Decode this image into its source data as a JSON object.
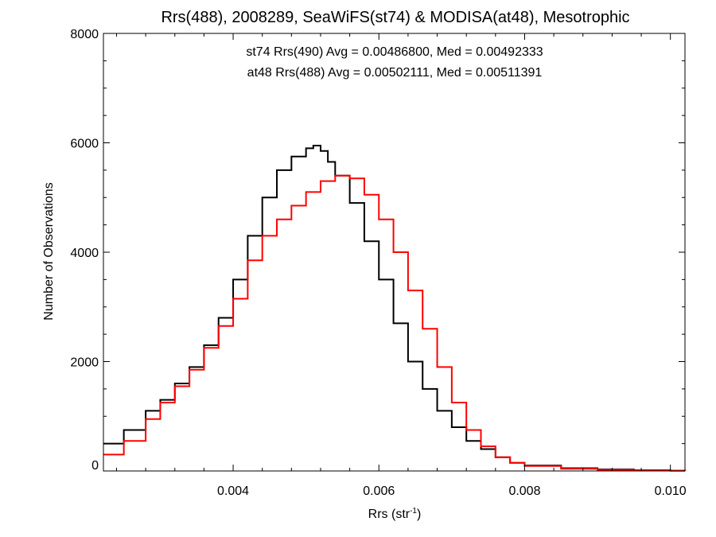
{
  "chart_data": {
    "type": "line",
    "step": true,
    "title": "Rrs(488), 2008289, SeaWiFS(st74) & MODISA(at48), Mesotrophic",
    "xlabel_main": "Rrs (str",
    "xlabel_sup": "-1",
    "xlabel_close": ")",
    "ylabel": "Number of Observations",
    "xlim": [
      0.00222,
      0.0102
    ],
    "ylim": [
      0,
      8000
    ],
    "x_ticks": [
      0.004,
      0.006,
      0.008,
      0.01
    ],
    "x_tick_labels": [
      "0.004",
      "0.006",
      "0.008",
      "0.010"
    ],
    "y_ticks": [
      0,
      2000,
      4000,
      6000,
      8000
    ],
    "y_tick_labels": [
      "0",
      "2000",
      "4000",
      "6000",
      "8000"
    ],
    "grid": false,
    "colors": {
      "st74": "#000000",
      "at48": "#ff0000"
    },
    "series": [
      {
        "name": "st74",
        "color": "#000000",
        "annotation": "st74 Rrs(490) Avg = 0.00486800, Med = 0.00492333",
        "x": [
          0.00222,
          0.0025,
          0.0028,
          0.003,
          0.0032,
          0.0034,
          0.0036,
          0.0038,
          0.004,
          0.0042,
          0.0044,
          0.0046,
          0.0048,
          0.005,
          0.0051,
          0.0052,
          0.0053,
          0.0054,
          0.0056,
          0.0058,
          0.006,
          0.0062,
          0.0064,
          0.0066,
          0.0068,
          0.007,
          0.0072,
          0.0074,
          0.0076,
          0.0078,
          0.008,
          0.0085,
          0.009,
          0.0095,
          0.01,
          0.0102
        ],
        "y": [
          500,
          750,
          1100,
          1300,
          1600,
          1900,
          2300,
          2800,
          3500,
          4300,
          5000,
          5500,
          5750,
          5900,
          5950,
          5850,
          5650,
          5400,
          4900,
          4200,
          3500,
          2700,
          2000,
          1500,
          1100,
          800,
          550,
          400,
          250,
          150,
          100,
          50,
          30,
          15,
          5,
          0
        ]
      },
      {
        "name": "at48",
        "color": "#ff0000",
        "annotation": "at48 Rrs(488) Avg = 0.00502111, Med = 0.00511391",
        "x": [
          0.00222,
          0.0025,
          0.0028,
          0.003,
          0.0032,
          0.0034,
          0.0036,
          0.0038,
          0.004,
          0.0042,
          0.0044,
          0.0046,
          0.0048,
          0.005,
          0.0052,
          0.0054,
          0.0056,
          0.0058,
          0.006,
          0.0062,
          0.0064,
          0.0066,
          0.0068,
          0.007,
          0.0072,
          0.0074,
          0.0076,
          0.0078,
          0.008,
          0.0085,
          0.009,
          0.0095,
          0.01,
          0.0102
        ],
        "y": [
          300,
          550,
          950,
          1250,
          1550,
          1850,
          2250,
          2650,
          3150,
          3850,
          4300,
          4600,
          4850,
          5100,
          5300,
          5400,
          5350,
          5050,
          4600,
          4000,
          3300,
          2600,
          1900,
          1250,
          750,
          450,
          250,
          150,
          90,
          40,
          20,
          10,
          5,
          0
        ]
      }
    ]
  }
}
